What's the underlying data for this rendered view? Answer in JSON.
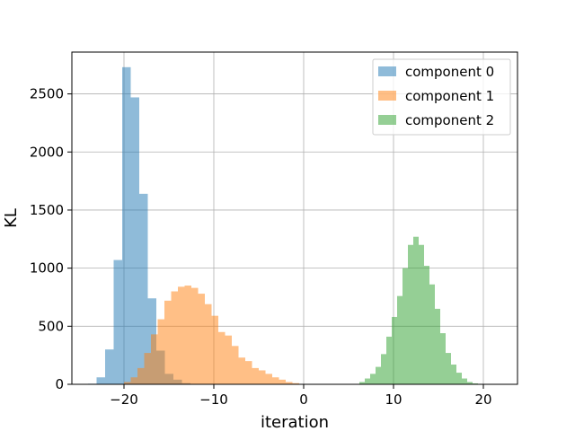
{
  "chart_data": {
    "type": "bar",
    "subtype": "histogram",
    "title": "",
    "xlabel": "iteration",
    "ylabel": "KL",
    "xlim": [
      -25.8,
      23.8
    ],
    "ylim": [
      0,
      2860
    ],
    "xticks": [
      -20,
      -10,
      0,
      10,
      20
    ],
    "yticks": [
      0,
      500,
      1000,
      1500,
      2000,
      2500
    ],
    "grid": true,
    "legend_position": "top-right",
    "series": [
      {
        "name": "component 0",
        "color": "#1f77b4",
        "opacity": 0.5,
        "bin_left": -24.0,
        "bin_width": 0.95,
        "values": [
          5,
          60,
          300,
          1070,
          2730,
          2470,
          1640,
          740,
          290,
          90,
          40,
          10
        ]
      },
      {
        "name": "component 1",
        "color": "#ff7f0e",
        "opacity": 0.5,
        "bin_left": -20.0,
        "bin_width": 0.75,
        "values": [
          20,
          60,
          140,
          270,
          430,
          560,
          720,
          800,
          840,
          850,
          830,
          780,
          690,
          590,
          450,
          420,
          330,
          230,
          200,
          140,
          120,
          90,
          60,
          40,
          20,
          10
        ]
      },
      {
        "name": "component 2",
        "color": "#2ca02c",
        "opacity": 0.5,
        "bin_left": 6.2,
        "bin_width": 0.6,
        "values": [
          20,
          50,
          90,
          150,
          260,
          410,
          580,
          760,
          1000,
          1200,
          1270,
          1200,
          1020,
          860,
          650,
          440,
          270,
          170,
          100,
          50,
          20,
          8
        ]
      }
    ]
  }
}
